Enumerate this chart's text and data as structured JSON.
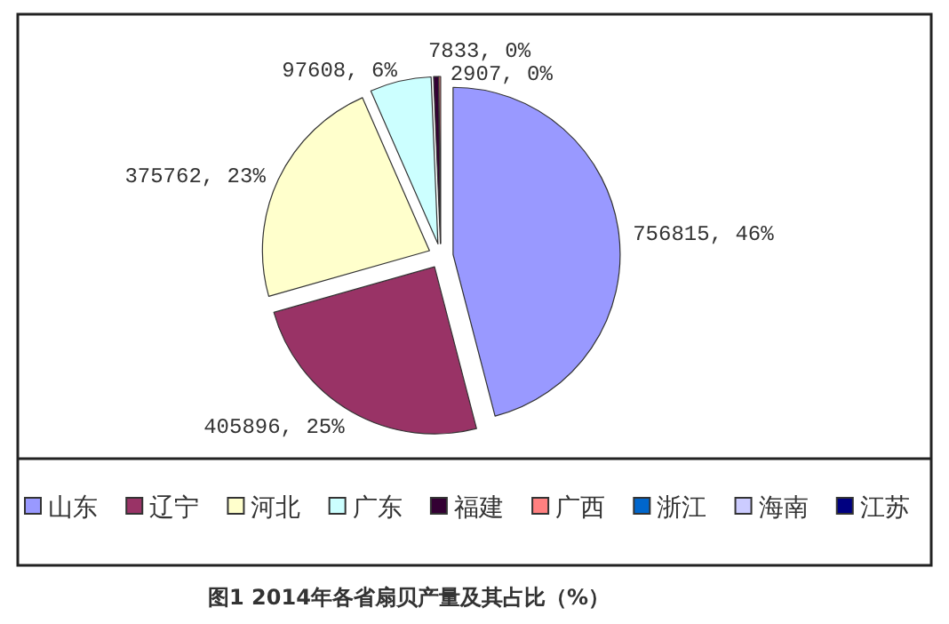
{
  "chart_data": {
    "type": "pie",
    "title": "图1 2014年各省扇贝产量及其占比（%）",
    "categories": [
      "山东",
      "辽宁",
      "河北",
      "广东",
      "福建",
      "广西",
      "浙江",
      "海南",
      "江苏"
    ],
    "values": [
      756815,
      405896,
      375762,
      97608,
      7833,
      2907,
      null,
      null,
      null
    ],
    "colors": [
      "#9999ff",
      "#993366",
      "#ffffcc",
      "#ccffff",
      "#330033",
      "#ff8080",
      "#0066cc",
      "#ccccff",
      "#000080"
    ],
    "value_labels": [
      "756815, 46%",
      "405896, 25%",
      "375762, 23%",
      "97608, 6%",
      "7833, 0%",
      "2907, 0%",
      null,
      null,
      null
    ],
    "legend": "bottom"
  }
}
